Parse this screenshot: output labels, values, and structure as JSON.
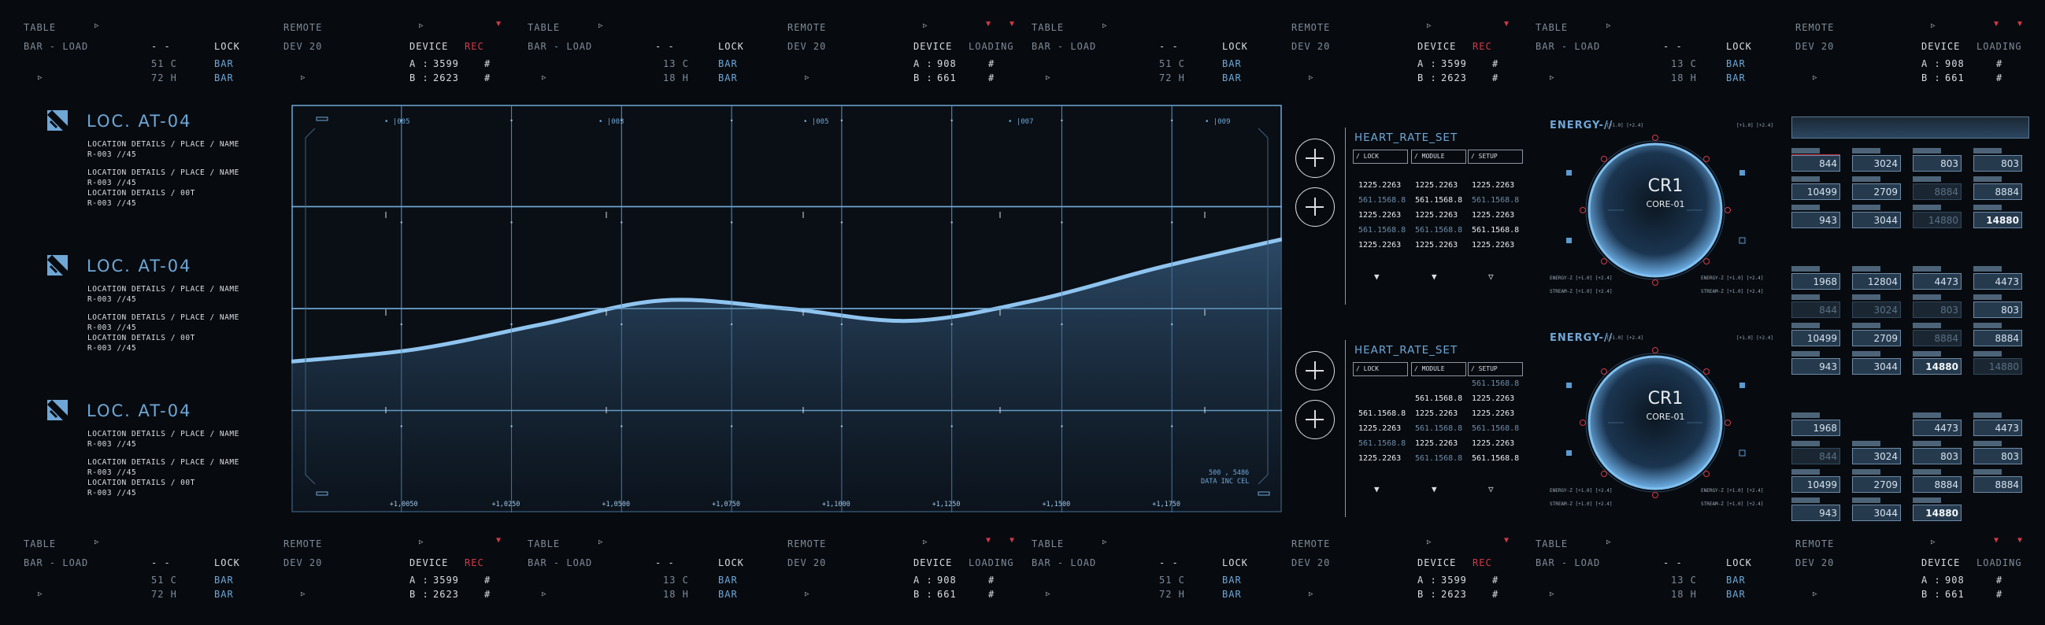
{
  "status_block": {
    "table": "TABLE",
    "bar_load": "BAR - LOAD",
    "dashes": "- -",
    "lock": "LOCK",
    "temp_c": "51 C",
    "temp_h": "72 H",
    "bar1": "BAR",
    "bar2": "BAR",
    "remote": "REMOTE",
    "dev": "DEV 20",
    "device": "DEVICE",
    "rec": "REC",
    "a_lbl": "A :",
    "a_val": "3599",
    "b_lbl": "B :",
    "b_val": "2623",
    "hash": "#",
    "temp_c2": "13 C",
    "temp_h2": "18 H",
    "loading": "LOADING",
    "a_val2": "908",
    "b_val2": "661"
  },
  "locations": [
    {
      "title": "LOC. AT-04",
      "lines": [
        "LOCATION DETAILS / PLACE / NAME",
        "R-003 //45",
        "LOCATION DETAILS / PLACE / NAME",
        "R-003 //45",
        "LOCATION DETAILS / 00T",
        "R-003 //45"
      ]
    },
    {
      "title": "LOC. AT-04",
      "lines": [
        "LOCATION DETAILS / PLACE / NAME",
        "R-003 //45",
        "LOCATION DETAILS / PLACE / NAME",
        "R-003 //45",
        "LOCATION DETAILS / 00T",
        "R-003 //45"
      ]
    },
    {
      "title": "LOC. AT-04",
      "lines": [
        "LOCATION DETAILS / PLACE / NAME",
        "R-003 //45",
        "LOCATION DETAILS / PLACE / NAME",
        "R-003 //45",
        "LOCATION DETAILS / 00T",
        "R-003 //45"
      ]
    }
  ],
  "chart_data": {
    "type": "area",
    "x": [
      1.0,
      1.025,
      1.05,
      1.075,
      1.1,
      1.125,
      1.15,
      1.175,
      1.2
    ],
    "y": [
      0.37,
      0.4,
      0.46,
      0.52,
      0.5,
      0.47,
      0.52,
      0.6,
      0.67
    ],
    "x_tick_labels": [
      "+1,0050",
      "+1,0250",
      "+1,0500",
      "+1,0750",
      "+1,1000",
      "+1,1250",
      "+1,1500",
      "+1,1750"
    ],
    "top_labels": [
      "• |005",
      "• |003",
      "• |005",
      "• |007",
      "• |009"
    ],
    "bottom_note_1": "500 , 5486",
    "bottom_note_2": "DATA INC CEL",
    "grid": true
  },
  "heart_panels": [
    {
      "title": "HEART_RATE_SET",
      "headers": [
        "/ LOCK",
        "/ MODULE",
        "/ SETUP"
      ],
      "rows": [
        [
          [
            "1225.2263",
            "w"
          ],
          [
            "1225.2263",
            "w"
          ],
          [
            "1225.2263",
            "w"
          ]
        ],
        [
          [
            "561.1568.8",
            "g"
          ],
          [
            "561.1568.8",
            "w"
          ],
          [
            "561.1568.8",
            "g"
          ]
        ],
        [
          [
            "1225.2263",
            "w"
          ],
          [
            "1225.2263",
            "w"
          ],
          [
            "1225.2263",
            "w"
          ]
        ],
        [
          [
            "561.1568.8",
            "g"
          ],
          [
            "561.1568.8",
            "g"
          ],
          [
            "561.1568.8",
            "w"
          ]
        ],
        [
          [
            "1225.2263",
            "w"
          ],
          [
            "1225.2263",
            "w"
          ],
          [
            "1225.2263",
            "w"
          ]
        ]
      ]
    },
    {
      "title": "HEART_RATE_SET",
      "headers": [
        "/ LOCK",
        "/ MODULE",
        "/ SETUP"
      ],
      "rows": [
        [
          [
            "",
            "w"
          ],
          [
            "",
            "w"
          ],
          [
            "561.1568.8",
            "g"
          ]
        ],
        [
          [
            "",
            "w"
          ],
          [
            "561.1568.8",
            "w"
          ],
          [
            "1225.2263",
            "w"
          ]
        ],
        [
          [
            "561.1568.8",
            "w"
          ],
          [
            "1225.2263",
            "w"
          ],
          [
            "1225.2263",
            "w"
          ]
        ],
        [
          [
            "1225.2263",
            "w"
          ],
          [
            "561.1568.8",
            "g"
          ],
          [
            "561.1568.8",
            "g"
          ]
        ],
        [
          [
            "561.1568.8",
            "g"
          ],
          [
            "1225.2263",
            "w"
          ],
          [
            "1225.2263",
            "w"
          ]
        ],
        [
          [
            "1225.2263",
            "w"
          ],
          [
            "561.1568.8",
            "g"
          ],
          [
            "561.1568.8",
            "w"
          ]
        ]
      ]
    }
  ],
  "energy": {
    "title": "ENERGY-//",
    "sub": "[+1.0] [+2.4]",
    "core": "CR1",
    "core_sub": "CORE-01",
    "side_label_a": "ENERGY-Z  [+1.0] [+2.4]",
    "side_label_b": "STREAM-Z  [+1.0] [+2.4]"
  },
  "grid": {
    "rows": [
      [
        [
          "844",
          "r"
        ],
        [
          "3024",
          "n"
        ],
        [
          "803",
          "n"
        ],
        [
          "803",
          "n"
        ]
      ],
      [
        [
          "10499",
          "n"
        ],
        [
          "2709",
          "n"
        ],
        [
          "8884",
          "d"
        ],
        [
          "8884",
          "n"
        ]
      ],
      [
        [
          "943",
          "n"
        ],
        [
          "3044",
          "n"
        ],
        [
          "14880",
          "d"
        ],
        [
          "14880",
          "b"
        ]
      ],
      null,
      [
        [
          "1968",
          "n"
        ],
        [
          "12804",
          "n"
        ],
        [
          "4473",
          "n"
        ],
        [
          "4473",
          "n"
        ]
      ],
      [
        [
          "844",
          "d"
        ],
        [
          "3024",
          "d"
        ],
        [
          "803",
          "d"
        ],
        [
          "803",
          "n"
        ]
      ],
      [
        [
          "10499",
          "n"
        ],
        [
          "2709",
          "n"
        ],
        [
          "8884",
          "d"
        ],
        [
          "8884",
          "n"
        ]
      ],
      [
        [
          "943",
          "n"
        ],
        [
          "3044",
          "n"
        ],
        [
          "14880",
          "b"
        ],
        [
          "14880",
          "d"
        ]
      ],
      null,
      [
        [
          "1968",
          "n"
        ],
        [
          "",
          "e"
        ],
        [
          "4473",
          "n"
        ],
        [
          "4473",
          "n"
        ]
      ],
      [
        [
          "844",
          "d"
        ],
        [
          "3024",
          "n"
        ],
        [
          "803",
          "n"
        ],
        [
          "803",
          "n"
        ]
      ],
      [
        [
          "10499",
          "n"
        ],
        [
          "2709",
          "n"
        ],
        [
          "8884",
          "n"
        ],
        [
          "8884",
          "n"
        ]
      ],
      [
        [
          "943",
          "n"
        ],
        [
          "3044",
          "n"
        ],
        [
          "14880",
          "b"
        ],
        [
          "",
          "e"
        ]
      ]
    ]
  }
}
